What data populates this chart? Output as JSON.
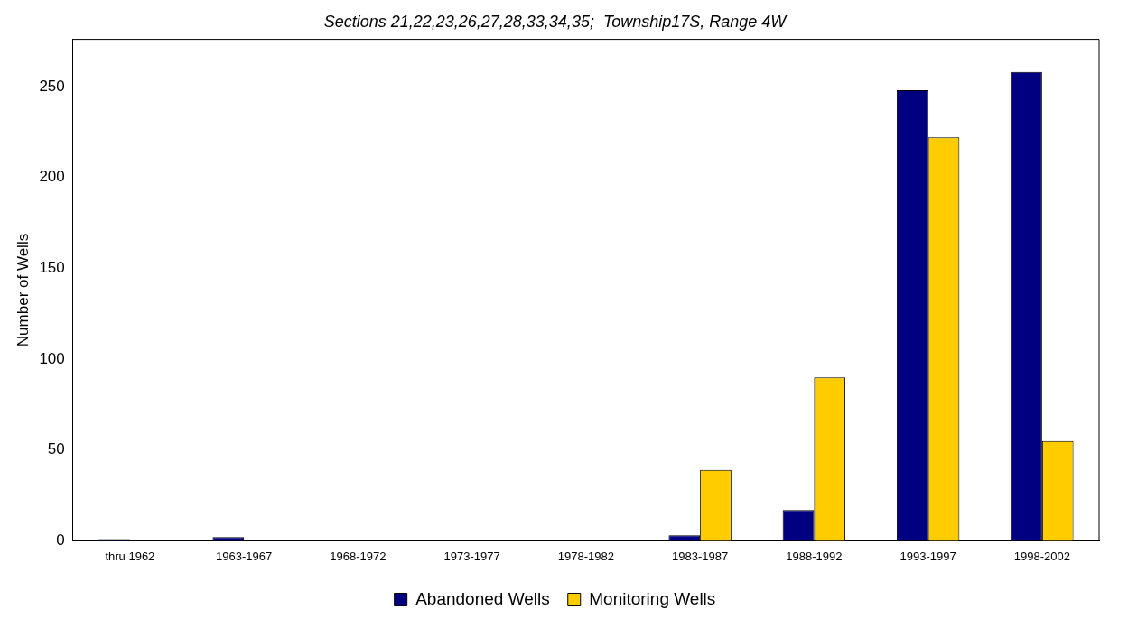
{
  "chart_data": {
    "type": "bar",
    "title": "Sections 21,22,23,26,27,28,33,34,35;  Township17S, Range 4W",
    "ylabel": "Number of Wells",
    "categories": [
      "thru 1962",
      "1963-1967",
      "1968-1972",
      "1973-1977",
      "1978-1982",
      "1983-1987",
      "1988-1992",
      "1993-1997",
      "1998-2002"
    ],
    "series": [
      {
        "name": "Abandoned Wells",
        "color": "#000080",
        "values": [
          1,
          2,
          0,
          0,
          0,
          3,
          17,
          248,
          258
        ]
      },
      {
        "name": "Monitoring Wells",
        "color": "#ffcc00",
        "values": [
          0,
          0,
          0,
          0,
          0,
          39,
          90,
          222,
          55
        ]
      }
    ],
    "ylim": [
      0,
      276
    ],
    "yticks": [
      0,
      50,
      100,
      150,
      200,
      250
    ],
    "grid": false,
    "legend": "bottom"
  }
}
